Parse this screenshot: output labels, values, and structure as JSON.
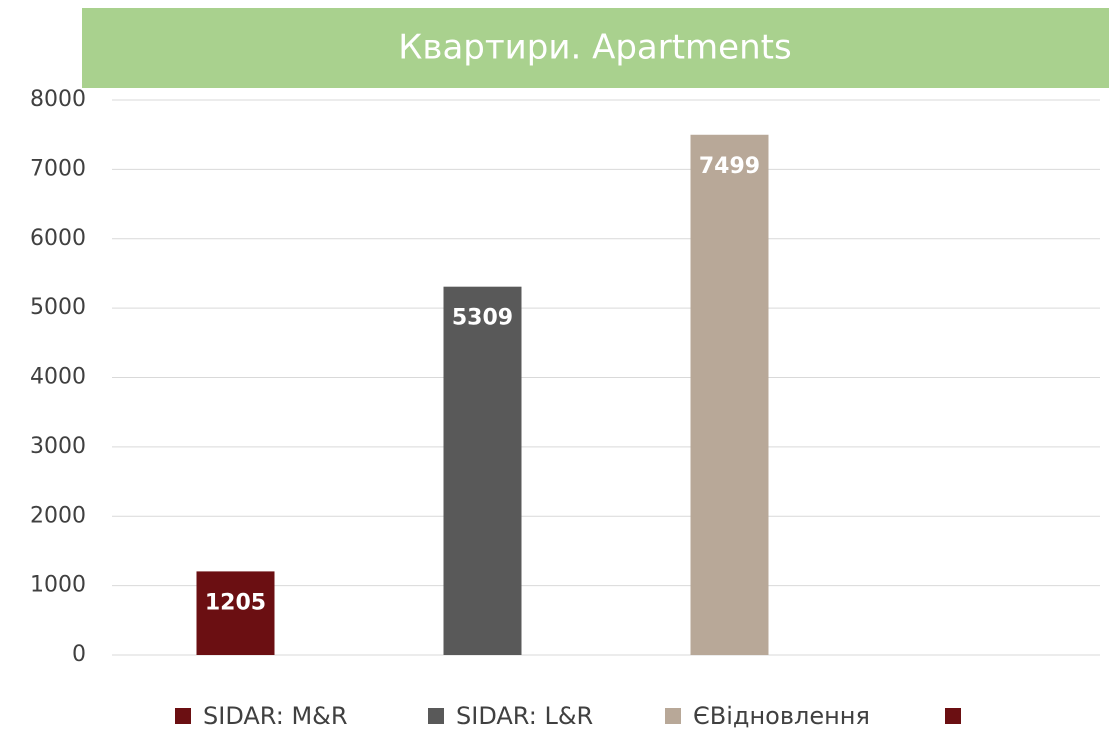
{
  "chart_data": {
    "type": "bar",
    "title": "Квартири. Apartments",
    "categories": [
      null
    ],
    "series": [
      {
        "name": "SIDAR: M&R",
        "color": "#6b0f12",
        "values": [
          1205
        ]
      },
      {
        "name": "SIDAR: L&R",
        "color": "#595959",
        "values": [
          5309
        ]
      },
      {
        "name": "ЄВідновлення",
        "color": "#b8a898",
        "values": [
          7499
        ]
      },
      {
        "name": null,
        "color": "#6b0f12",
        "values": [
          null
        ]
      }
    ],
    "ylim": [
      0,
      8000
    ],
    "yticks": [
      0,
      1000,
      2000,
      3000,
      4000,
      5000,
      6000,
      7000,
      8000
    ],
    "grid": true,
    "legend": "bottom"
  }
}
